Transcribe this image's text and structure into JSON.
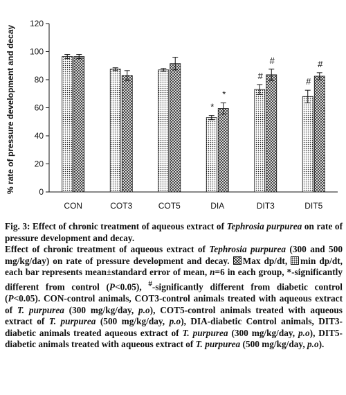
{
  "chart_data": {
    "type": "bar",
    "ylabel": "% rate of pressure development and decay",
    "xlabel": "",
    "ylim": [
      0,
      120
    ],
    "y_ticks": [
      0,
      20,
      40,
      60,
      80,
      100,
      120
    ],
    "categories": [
      "CON",
      "COT3",
      "COT5",
      "DIA",
      "DIT3",
      "DIT5"
    ],
    "grid": false,
    "legend": "none",
    "series": [
      {
        "name": "Max dp/dt",
        "pattern": "dotted",
        "values": [
          96.5,
          87.5,
          87,
          53,
          73,
          68
        ],
        "errors": [
          1.5,
          1,
          1,
          1.5,
          3.5,
          4.5
        ],
        "significance": [
          "",
          "",
          "",
          "*",
          "#",
          "#"
        ]
      },
      {
        "name": "min dp/dt",
        "pattern": "cross-hatched",
        "values": [
          96.5,
          83,
          91.5,
          59.5,
          83.5,
          82.5
        ],
        "errors": [
          1.5,
          3.5,
          4.5,
          4,
          4,
          2.5
        ],
        "significance": [
          "",
          "",
          "",
          "*",
          "#",
          "#"
        ]
      }
    ],
    "colors": {
      "bar_fill": "#ffffff",
      "bar_pattern": "#222222",
      "axis": "#111111"
    }
  },
  "caption": {
    "fig_prefix": "Fig. 3: Effect of chronic treatment of aqueous extract of ",
    "fig_species": "Tephrosia purpurea",
    "fig_suffix": " on rate of pressure development and decay.",
    "p2_a": "Effect of chronic treatment of aqueous extract of ",
    "p2_species": "Tephrosia purpurea",
    "p2_b": " (300 and 500 mg/kg/day) on rate of pressure development and decay. ",
    "p2_max_label": "Max dp/dt, ",
    "p2_min_label": "min dp/dt, each bar represents mean±standard error of mean, ",
    "p2_n": "n",
    "p2_c": "=6 in each group, *-significantly different from control (",
    "p2_p1": "P",
    "p2_d": "<0.05), ",
    "p2_hash": "#",
    "p2_e": "-significantly different from diabetic control (",
    "p2_p2": "P",
    "p2_f": "<0.05). CON-control animals, COT3-control animals treated with aqueous extract of ",
    "p2_t1": "T. purpurea",
    "p2_g": " (300 mg/kg/day, ",
    "p2_po1": "p.o",
    "p2_h": "), COT5-control animals treated with aqueous extract of ",
    "p2_t2": "T. purpurea",
    "p2_i": " (500 mg/kg/day, ",
    "p2_po2": "p.o",
    "p2_j": "), DIA-diabetic Control animals, DIT3-diabetic animals treated aqueous extract of ",
    "p2_t3": "T. purpurea",
    "p2_k": " (300 mg/kg/day, ",
    "p2_po3": "p.o",
    "p2_l": "), DIT5-diabetic animals treated with aqueous extract of ",
    "p2_t4": "T. purpurea",
    "p2_m": " (500 mg/kg/day, ",
    "p2_po4": "p.o",
    "p2_n_end": ")."
  }
}
